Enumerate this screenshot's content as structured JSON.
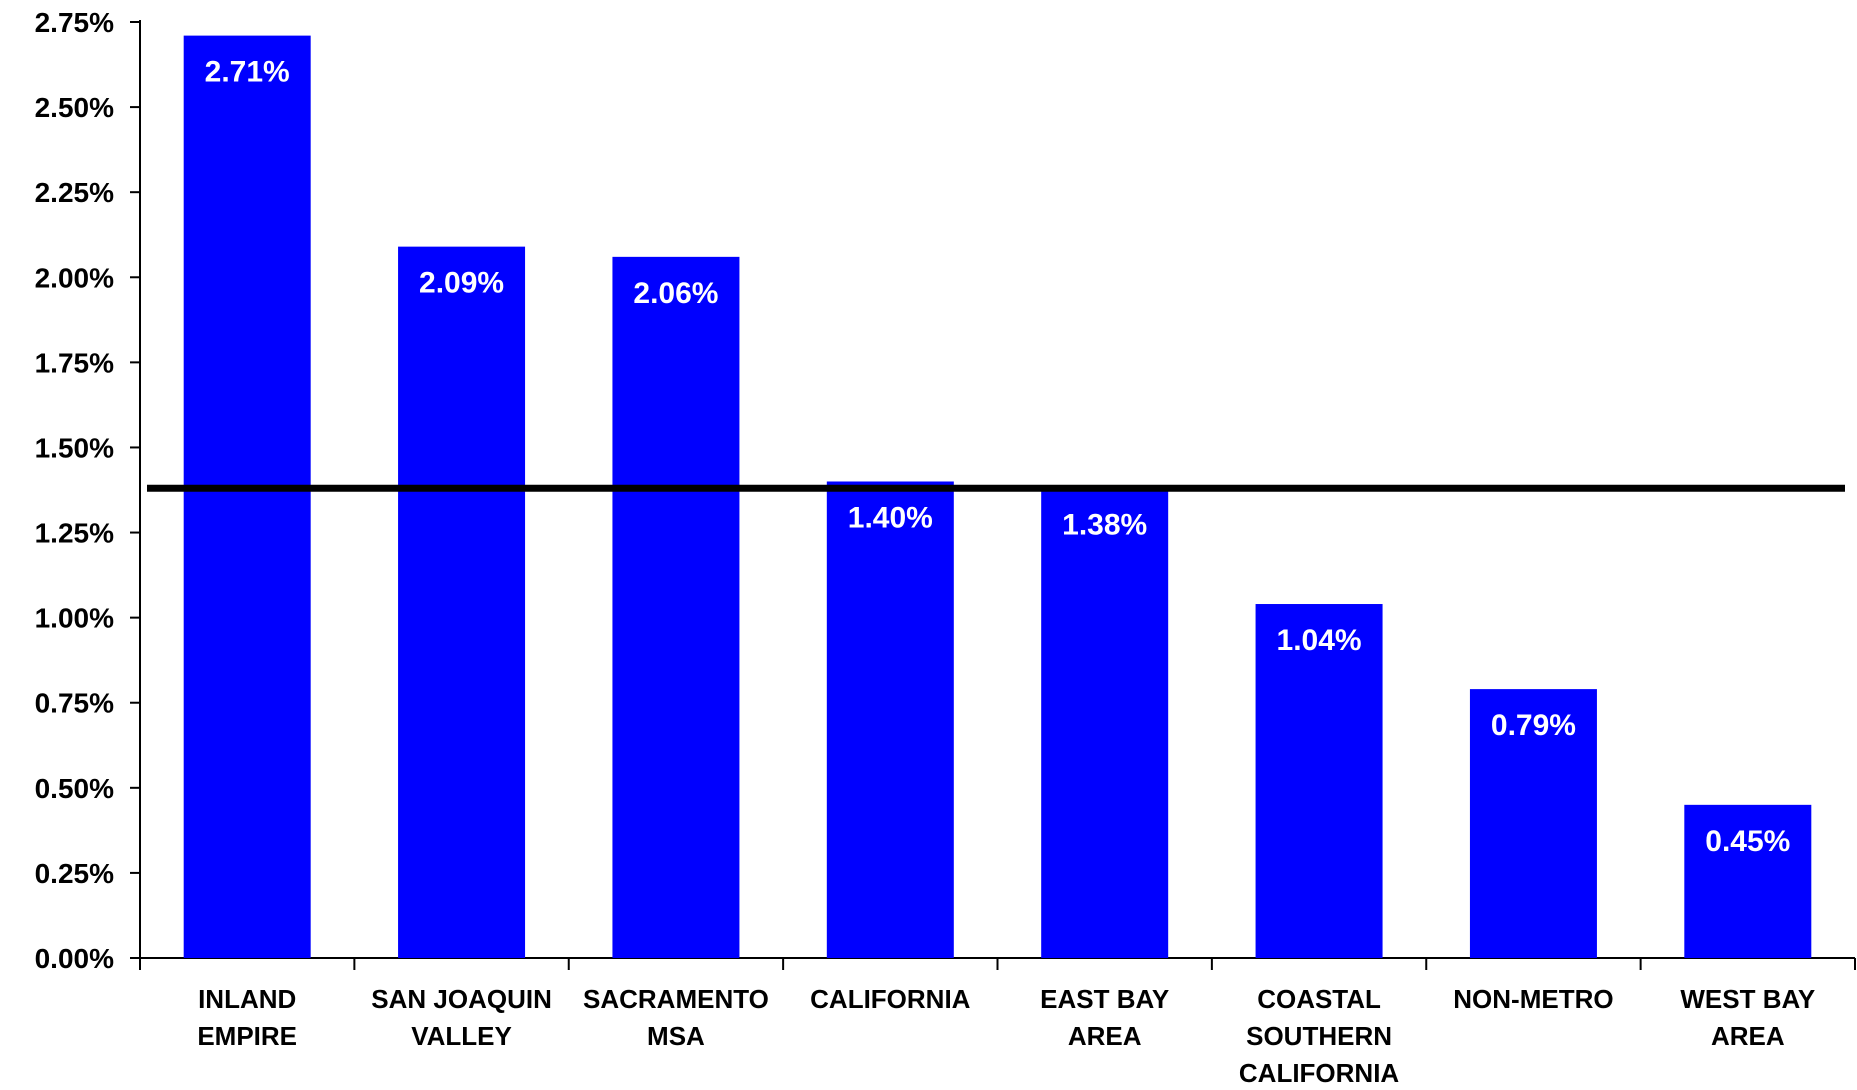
{
  "chart_data": {
    "type": "bar",
    "title": "",
    "xlabel": "",
    "ylabel": "",
    "ylim": [
      0,
      2.75
    ],
    "yticks": [
      0,
      0.25,
      0.5,
      0.75,
      1.0,
      1.25,
      1.5,
      1.75,
      2.0,
      2.25,
      2.5,
      2.75
    ],
    "ytick_labels": [
      "0.00%",
      "0.25%",
      "0.50%",
      "0.75%",
      "1.00%",
      "1.25%",
      "1.50%",
      "1.75%",
      "2.00%",
      "2.25%",
      "2.50%",
      "2.75%"
    ],
    "categories": [
      [
        "INLAND",
        "EMPIRE"
      ],
      [
        "SAN JOAQUIN",
        "VALLEY"
      ],
      [
        "SACRAMENTO",
        "MSA"
      ],
      [
        "CALIFORNIA"
      ],
      [
        "EAST BAY",
        "AREA"
      ],
      [
        "COASTAL",
        "SOUTHERN",
        "CALIFORNIA"
      ],
      [
        "NON-METRO"
      ],
      [
        "WEST BAY",
        "AREA"
      ]
    ],
    "values": [
      2.71,
      2.09,
      2.06,
      1.4,
      1.38,
      1.04,
      0.79,
      0.45
    ],
    "data_labels": [
      "2.71%",
      "2.09%",
      "2.06%",
      "1.40%",
      "1.38%",
      "1.04%",
      "0.79%",
      "0.45%"
    ],
    "reference_line": {
      "value": 1.38,
      "color": "#000000"
    },
    "bar_color": "#0000ff",
    "grid": false,
    "legend": "none"
  }
}
